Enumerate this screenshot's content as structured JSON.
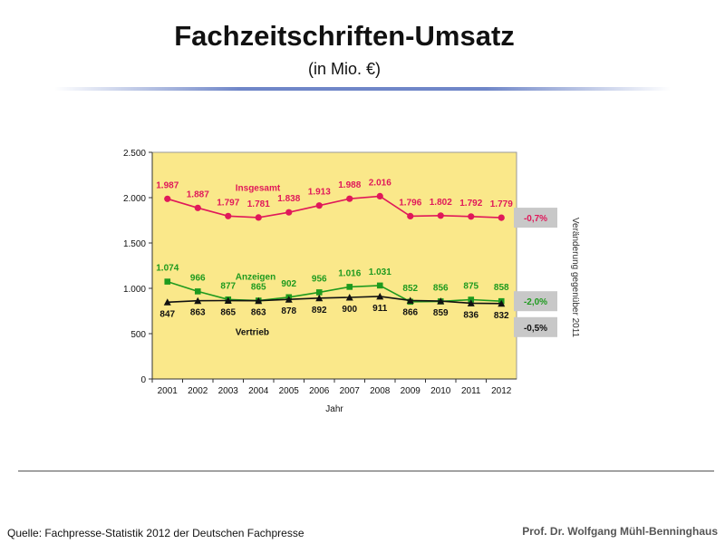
{
  "slide": {
    "title": "Fachzeitschriften-Umsatz",
    "subtitle": "(in Mio. €)",
    "source": "Quelle: Fachpresse-Statistik 2012 der Deutschen Fachpresse",
    "author": "Prof. Dr. Wolfgang Mühl-Benninghaus"
  },
  "chart_data": {
    "type": "line",
    "x": [
      "2001",
      "2002",
      "2003",
      "2004",
      "2005",
      "2006",
      "2007",
      "2008",
      "2009",
      "2010",
      "2011",
      "2012"
    ],
    "xlabel": "Jahr",
    "ylabel": "",
    "ylim": [
      0,
      2500
    ],
    "yticks": [
      0,
      500,
      1000,
      1500,
      2000,
      2500
    ],
    "ytick_labels": [
      "0",
      "500",
      "1.000",
      "1.500",
      "2.000",
      "2.500"
    ],
    "plot_background": "#fae88a",
    "grid": false,
    "side_label": "Veränderung gegenüber 2011",
    "series": [
      {
        "name": "Insgesamt",
        "color": "#e0185a",
        "marker": "circle",
        "values": [
          1987,
          1887,
          1797,
          1781,
          1838,
          1913,
          1988,
          2016,
          1796,
          1802,
          1792,
          1779
        ],
        "labels": [
          "1.987",
          "1.887",
          "1.797",
          "1.781",
          "1.838",
          "1.913",
          "1.988",
          "2.016",
          "1.796",
          "1.802",
          "1.792",
          "1.779"
        ],
        "change": "-0,7%"
      },
      {
        "name": "Anzeigen",
        "color": "#1e9a1e",
        "marker": "square",
        "values": [
          1074,
          966,
          877,
          865,
          902,
          956,
          1016,
          1031,
          852,
          856,
          875,
          858
        ],
        "labels": [
          "1.074",
          "966",
          "877",
          "865",
          "902",
          "956",
          "1.016",
          "1.031",
          "852",
          "856",
          "875",
          "858"
        ],
        "change": "-2,0%"
      },
      {
        "name": "Vertrieb",
        "color": "#111111",
        "marker": "triangle",
        "values": [
          847,
          863,
          865,
          863,
          878,
          892,
          900,
          911,
          866,
          859,
          836,
          832
        ],
        "labels": [
          "847",
          "863",
          "865",
          "863",
          "878",
          "892",
          "900",
          "911",
          "866",
          "859",
          "836",
          "832"
        ],
        "change": "-0,5%"
      }
    ]
  }
}
